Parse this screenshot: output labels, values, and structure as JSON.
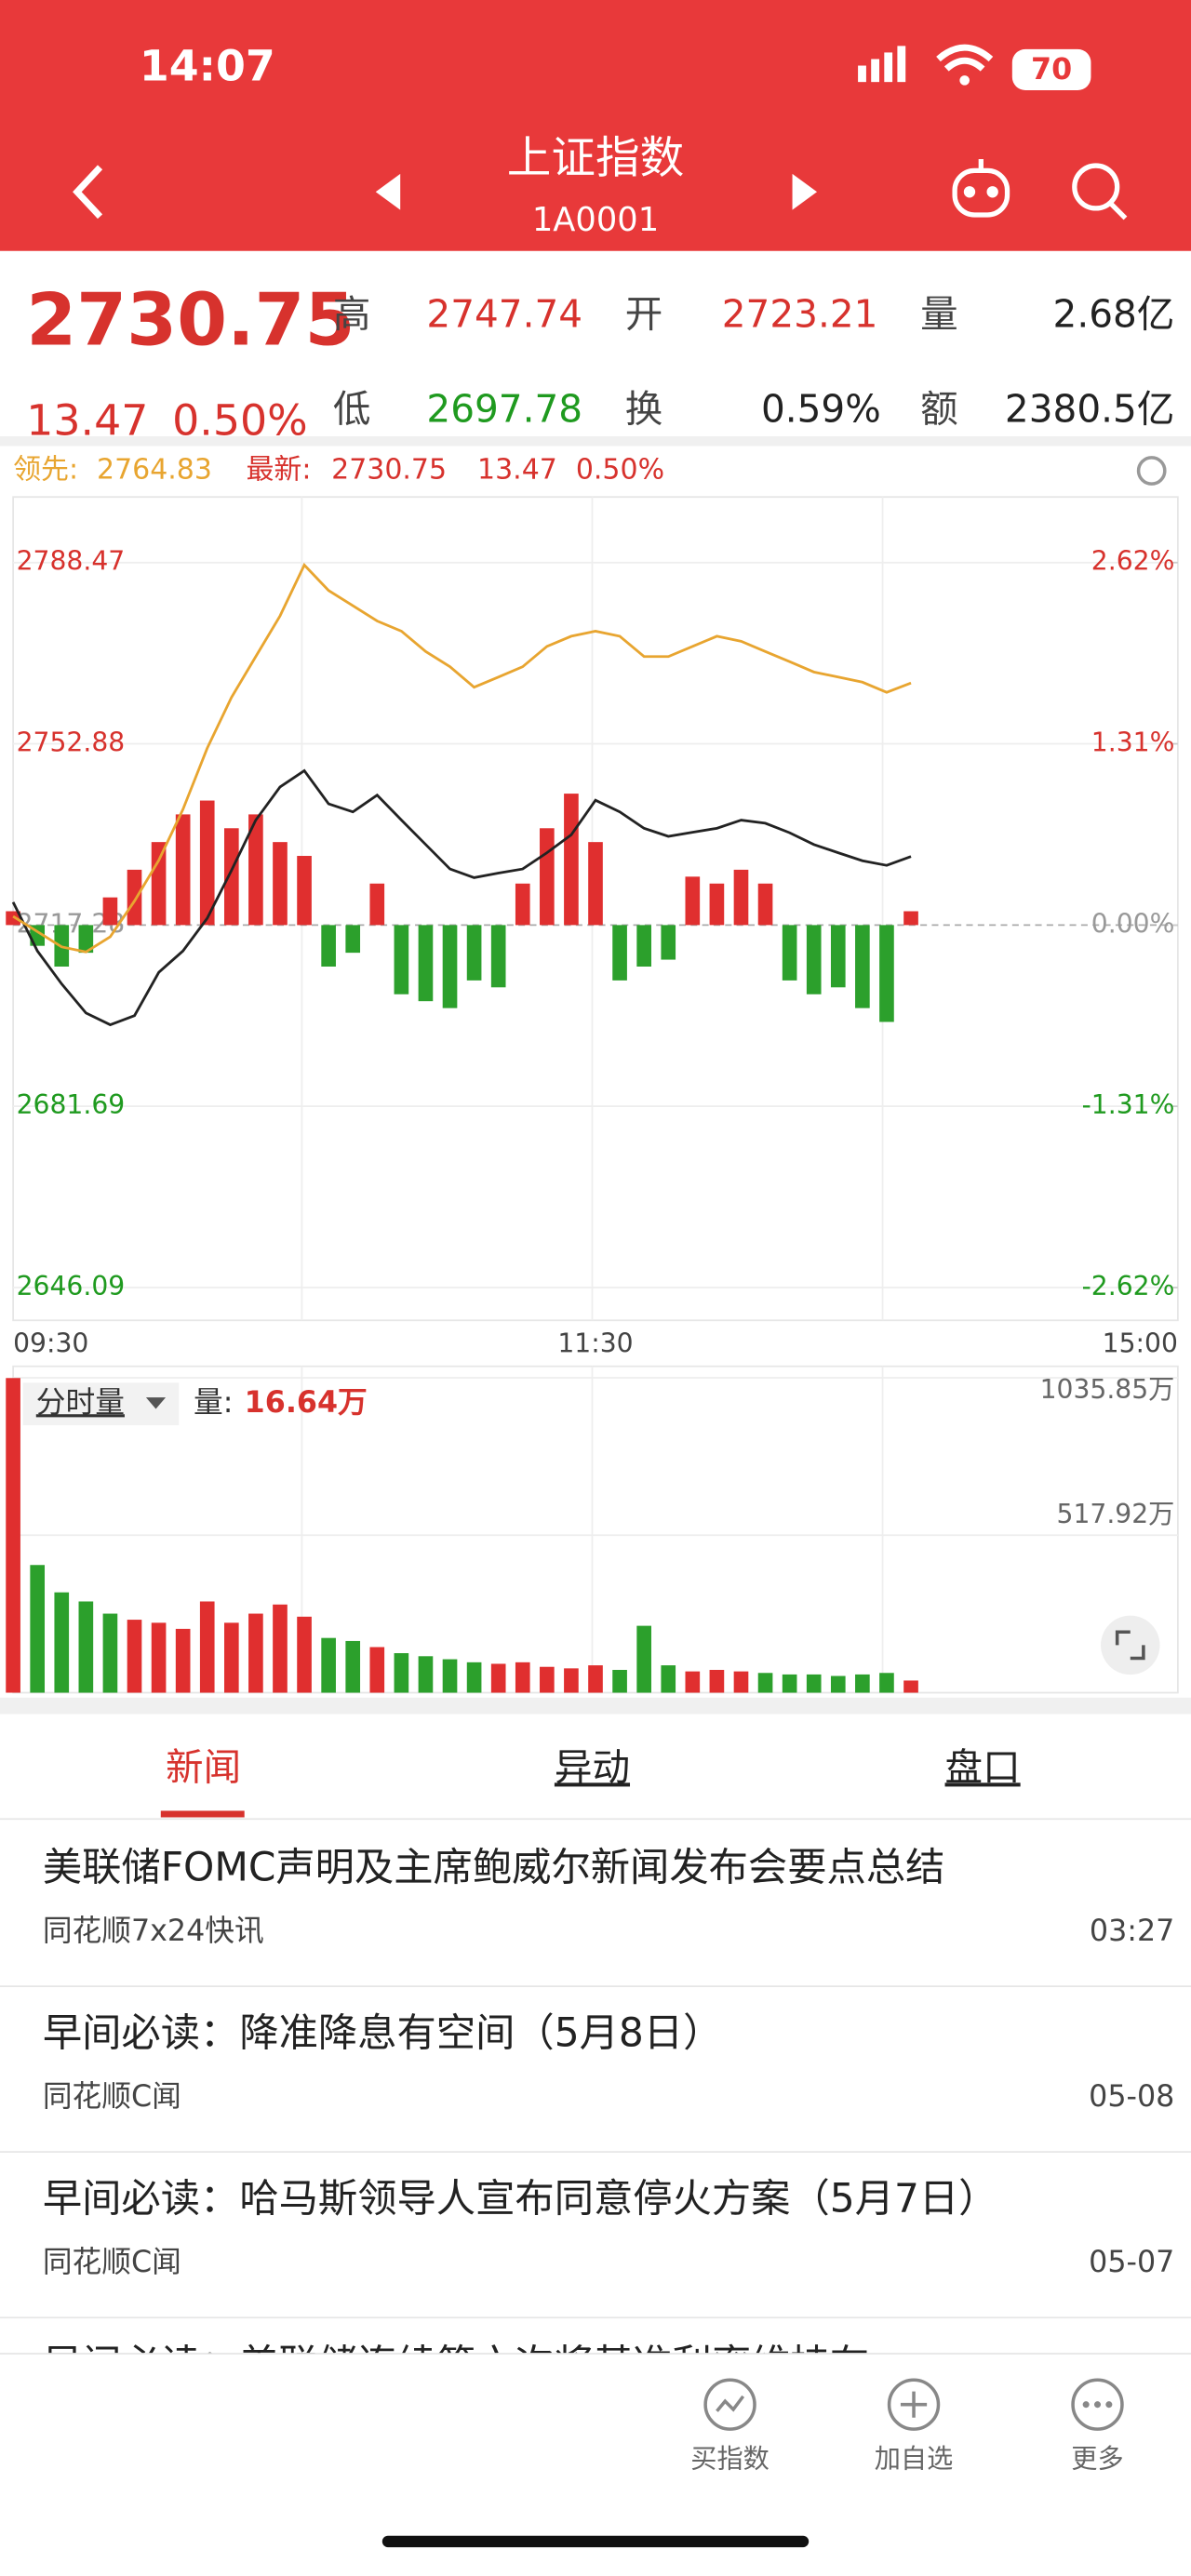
{
  "status_bar": {
    "time": "14:07",
    "battery": "70"
  },
  "header": {
    "title": "上证指数",
    "code": "1A0001"
  },
  "quote": {
    "price": "2730.75",
    "change": "13.47",
    "change_pct": "0.50%",
    "fields": [
      {
        "label": "高",
        "value": "2747.74"
      },
      {
        "label": "开",
        "value": "2723.21"
      },
      {
        "label": "量",
        "value": "2.68亿"
      },
      {
        "label": "低",
        "value": "2697.78"
      },
      {
        "label": "换",
        "value": "0.59%"
      },
      {
        "label": "额",
        "value": "2380.5亿"
      }
    ]
  },
  "chart_data": [
    {
      "type": "line",
      "legend": {
        "lead_label": "领先:",
        "lead_value": "2764.83",
        "latest_label": "最新:",
        "latest_value": "2730.75",
        "change": "13.47",
        "change_pct": "0.50%"
      },
      "categories": [
        "09:30",
        null,
        null,
        null,
        null,
        null,
        null,
        null,
        null,
        null,
        null,
        null,
        null,
        null,
        null,
        null,
        null,
        null,
        null,
        null,
        null,
        null,
        null,
        null,
        "11:30",
        null,
        null,
        null,
        null,
        null,
        null,
        null,
        null,
        null,
        null,
        null,
        null,
        null,
        null,
        null,
        null,
        null,
        null,
        null,
        null,
        null,
        null,
        null,
        "15:00"
      ],
      "ylim": [
        2646.09,
        2788.47
      ],
      "yticks": [
        2646.09,
        2681.69,
        2717.28,
        2752.88,
        2788.47
      ],
      "y2lim": [
        -2.62,
        2.62
      ],
      "y2ticks": [
        {
          "value": -2.62,
          "label": "-2.62%"
        },
        {
          "value": -1.31,
          "label": "-1.31%"
        },
        {
          "value": 0,
          "label": "0.00%"
        },
        {
          "value": 1.31,
          "label": "1.31%"
        },
        {
          "value": 2.62,
          "label": "2.62%"
        }
      ],
      "series": [
        {
          "color": "#222222",
          "values": [
            2721.8,
            2712.2,
            2705.7,
            2700.0,
            2697.7,
            2699.5,
            2708.0,
            2712.2,
            2718.6,
            2728.0,
            2737.9,
            2744.4,
            2747.6,
            2741.1,
            2739.5,
            2742.8,
            2737.9,
            2733.1,
            2728.3,
            2726.6,
            2727.5,
            2728.3,
            2731.5,
            2735.0,
            2741.8,
            2739.5,
            2736.3,
            2734.7,
            2735.5,
            2736.3,
            2737.9,
            2737.3,
            2735.4,
            2733.1,
            2731.5,
            2729.9,
            2729.0,
            2730.75,
            null,
            null,
            null,
            null,
            null,
            null,
            null,
            null,
            null,
            null,
            null
          ]
        },
        {
          "color": "#e8a530",
          "values": [
            2719,
            2716,
            2713,
            2712,
            2715,
            2722,
            2730,
            2740,
            2752,
            2762,
            2770,
            2778,
            2788,
            2783,
            2780,
            2777,
            2775,
            2771,
            2768,
            2764,
            2766,
            2768,
            2772,
            2774,
            2775,
            2774,
            2770,
            2770,
            2772,
            2774,
            2773,
            2771,
            2769,
            2767,
            2766,
            2765,
            2763,
            2764.83,
            null,
            null,
            null,
            null,
            null,
            null,
            null,
            null,
            null,
            null,
            null
          ]
        }
      ],
      "bars": {
        "axis": "y2",
        "color": "#e02f2f",
        "down_color": "#2ca02c",
        "values": [
          0.1,
          -0.15,
          -0.3,
          -0.2,
          0.2,
          0.4,
          0.6,
          0.8,
          0.9,
          0.7,
          0.8,
          0.6,
          0.5,
          -0.3,
          -0.2,
          0.3,
          -0.5,
          -0.55,
          -0.6,
          -0.4,
          -0.45,
          0.3,
          0.7,
          0.95,
          0.6,
          -0.4,
          -0.3,
          -0.25,
          0.35,
          0.3,
          0.4,
          0.3,
          -0.4,
          -0.5,
          -0.45,
          -0.6,
          -0.7,
          0.1
        ]
      }
    },
    {
      "type": "bar",
      "legend": {
        "label": "分时量",
        "volume_label": "量:",
        "volume_value": "16.64万"
      },
      "ylim": [
        0,
        1035.85
      ],
      "yticks": [
        {
          "value": 517.92,
          "label": "517.92万"
        },
        {
          "value": 1035.85,
          "label": "1035.85万"
        }
      ],
      "color": "#e02f2f",
      "down_color": "#2ca02c",
      "values": [
        1035,
        420,
        330,
        300,
        260,
        240,
        230,
        210,
        300,
        230,
        260,
        290,
        250,
        180,
        170,
        150,
        130,
        120,
        110,
        100,
        95,
        100,
        85,
        80,
        90,
        75,
        220,
        90,
        70,
        75,
        70,
        65,
        60,
        60,
        55,
        60,
        65,
        40
      ]
    }
  ],
  "tabs": [
    "新闻",
    "异动",
    "盘口"
  ],
  "news": [
    {
      "title": "美联储FOMC声明及主席鲍威尔新闻发布会要点总结",
      "source": "同花顺7x24快讯",
      "time": "03:27"
    },
    {
      "title": "早间必读：降准降息有空间（5月8日）",
      "source": "同花顺C闻",
      "time": "05-08"
    },
    {
      "title": "早间必读：哈马斯领导人宣布同意停火方案（5月7日）",
      "source": "同花顺C闻",
      "time": "05-07"
    },
    {
      "title": "早间必读：美联储连续第六次将基准利率维持在"
    }
  ],
  "toolbar": [
    "买指数",
    "加自选",
    "更多"
  ]
}
